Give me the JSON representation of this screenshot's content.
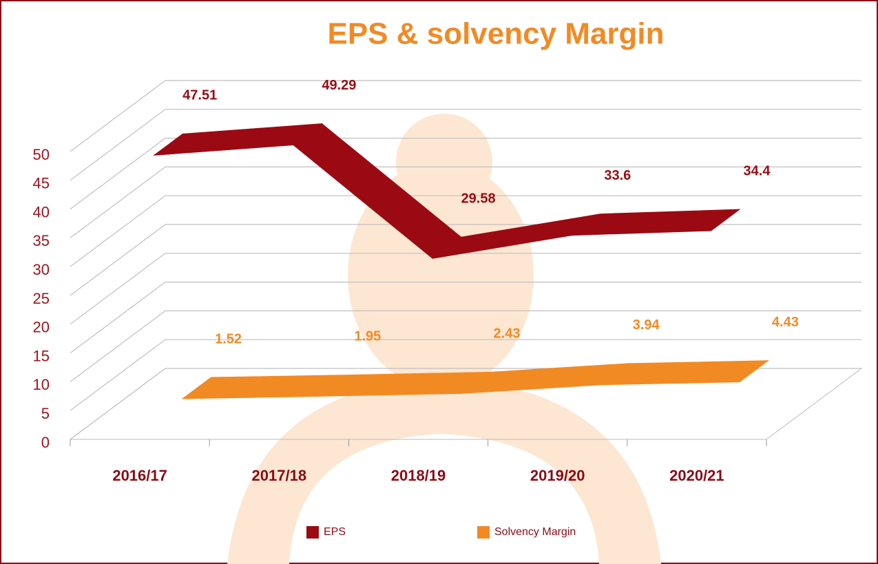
{
  "chart_data": {
    "type": "line",
    "title": "EPS & solvency Margin",
    "categories": [
      "2016/17",
      "2017/18",
      "2018/19",
      "2019/20",
      "2020/21"
    ],
    "series": [
      {
        "name": "EPS",
        "color": "#9b0a12",
        "values": [
          47.51,
          49.29,
          29.58,
          33.6,
          34.4
        ]
      },
      {
        "name": "Solvency Margin",
        "color": "#f28a24",
        "values": [
          1.52,
          1.95,
          2.43,
          3.94,
          4.43
        ]
      }
    ],
    "ylim": [
      0,
      50
    ],
    "yticks": [
      0,
      5,
      10,
      15,
      20,
      25,
      30,
      35,
      40,
      45,
      50
    ],
    "grid": true,
    "legend": "bottom"
  }
}
